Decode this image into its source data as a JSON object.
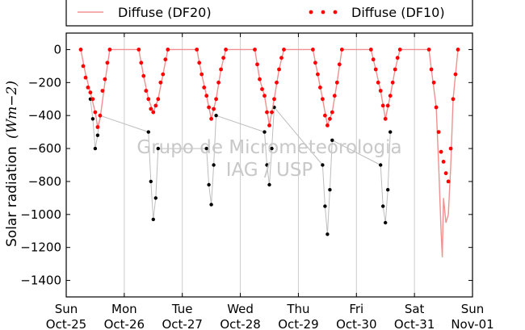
{
  "chart_data": {
    "type": "line",
    "ylabel": "Solar radiation",
    "ylabel_unit": "(Wm−2)",
    "ylim": [
      -1500,
      100
    ],
    "y_ticks": [
      0,
      -200,
      -400,
      -600,
      -800,
      -1000,
      -1200,
      -1400
    ],
    "xlim": [
      "2015-10-25",
      "2015-11-01"
    ],
    "x_ticks": [
      {
        "date": "2015-10-25",
        "day": "Sun",
        "label": "Oct-25"
      },
      {
        "date": "2015-10-26",
        "day": "Mon",
        "label": "Oct-26"
      },
      {
        "date": "2015-10-27",
        "day": "Tue",
        "label": "Oct-27"
      },
      {
        "date": "2015-10-28",
        "day": "Wed",
        "label": "Oct-28"
      },
      {
        "date": "2015-10-29",
        "day": "Thu",
        "label": "Oct-29"
      },
      {
        "date": "2015-10-30",
        "day": "Fri",
        "label": "Oct-30"
      },
      {
        "date": "2015-10-31",
        "day": "Sat",
        "label": "Oct-31"
      },
      {
        "date": "2015-11-01",
        "day": "Sun",
        "label": "Nov-01"
      }
    ],
    "grid": "vertical",
    "legend": {
      "placement": "top",
      "columns": 2
    },
    "watermark": [
      "Grupo de Micrometeorologia",
      "IAG / USP"
    ],
    "series": [
      {
        "name": "Diffuse (DF20)",
        "style": "line",
        "color": "#f09090",
        "points": [
          [
            "2015-10-25 06:00",
            0
          ],
          [
            "2015-10-25 08:00",
            -150
          ],
          [
            "2015-10-25 10:00",
            -260
          ],
          [
            "2015-10-25 12:00",
            -380
          ],
          [
            "2015-10-25 13:00",
            -470
          ],
          [
            "2015-10-25 14:00",
            -420
          ],
          [
            "2015-10-25 16:00",
            -200
          ],
          [
            "2015-10-25 18:00",
            0
          ],
          [
            "2015-10-26 06:00",
            0
          ],
          [
            "2015-10-26 08:00",
            -160
          ],
          [
            "2015-10-26 10:00",
            -300
          ],
          [
            "2015-10-26 12:00",
            -380
          ],
          [
            "2015-10-26 14:00",
            -300
          ],
          [
            "2015-10-26 16:00",
            -150
          ],
          [
            "2015-10-26 18:00",
            0
          ],
          [
            "2015-10-27 06:00",
            0
          ],
          [
            "2015-10-27 08:00",
            -150
          ],
          [
            "2015-10-27 10:00",
            -280
          ],
          [
            "2015-10-27 12:00",
            -420
          ],
          [
            "2015-10-27 14:00",
            -300
          ],
          [
            "2015-10-27 16:00",
            -120
          ],
          [
            "2015-10-27 18:00",
            0
          ],
          [
            "2015-10-28 06:00",
            0
          ],
          [
            "2015-10-28 08:00",
            -180
          ],
          [
            "2015-10-28 10:00",
            -280
          ],
          [
            "2015-10-28 12:00",
            -460
          ],
          [
            "2015-10-28 14:00",
            -300
          ],
          [
            "2015-10-28 16:00",
            -120
          ],
          [
            "2015-10-28 18:00",
            0
          ],
          [
            "2015-10-29 06:00",
            0
          ],
          [
            "2015-10-29 08:00",
            -150
          ],
          [
            "2015-10-29 10:00",
            -300
          ],
          [
            "2015-10-29 12:00",
            -460
          ],
          [
            "2015-10-29 14:00",
            -380
          ],
          [
            "2015-10-29 16:00",
            -200
          ],
          [
            "2015-10-29 18:00",
            0
          ],
          [
            "2015-10-30 06:00",
            0
          ],
          [
            "2015-10-30 08:00",
            -120
          ],
          [
            "2015-10-30 10:00",
            -250
          ],
          [
            "2015-10-30 12:00",
            -420
          ],
          [
            "2015-10-30 14:00",
            -280
          ],
          [
            "2015-10-30 16:00",
            -120
          ],
          [
            "2015-10-30 18:00",
            0
          ],
          [
            "2015-10-31 06:00",
            0
          ],
          [
            "2015-10-31 07:00",
            -120
          ],
          [
            "2015-10-31 09:00",
            -350
          ],
          [
            "2015-10-31 10:00",
            -700
          ],
          [
            "2015-10-31 11:00",
            -1100
          ],
          [
            "2015-10-31 11:30",
            -1260
          ],
          [
            "2015-10-31 12:00",
            -900
          ],
          [
            "2015-10-31 13:00",
            -1050
          ],
          [
            "2015-10-31 14:00",
            -1000
          ],
          [
            "2015-10-31 15:00",
            -700
          ],
          [
            "2015-10-31 16:00",
            -300
          ],
          [
            "2015-10-31 17:00",
            -150
          ],
          [
            "2015-10-31 18:00",
            0
          ]
        ]
      },
      {
        "name": "Diffuse (DF10)",
        "style": "dots",
        "color": "#ff0000",
        "points": [
          [
            "2015-10-25 06:00",
            0
          ],
          [
            "2015-10-25 07:00",
            -100
          ],
          [
            "2015-10-25 08:00",
            -170
          ],
          [
            "2015-10-25 09:00",
            -230
          ],
          [
            "2015-10-25 10:00",
            -260
          ],
          [
            "2015-10-25 11:00",
            -300
          ],
          [
            "2015-10-25 12:00",
            -380
          ],
          [
            "2015-10-25 13:00",
            -470
          ],
          [
            "2015-10-25 14:00",
            -400
          ],
          [
            "2015-10-25 15:00",
            -250
          ],
          [
            "2015-10-25 16:00",
            -180
          ],
          [
            "2015-10-25 17:00",
            -80
          ],
          [
            "2015-10-25 18:00",
            0
          ],
          [
            "2015-10-26 06:00",
            0
          ],
          [
            "2015-10-26 07:00",
            -80
          ],
          [
            "2015-10-26 08:00",
            -160
          ],
          [
            "2015-10-26 09:00",
            -250
          ],
          [
            "2015-10-26 10:00",
            -300
          ],
          [
            "2015-10-26 11:00",
            -360
          ],
          [
            "2015-10-26 12:00",
            -380
          ],
          [
            "2015-10-26 13:00",
            -340
          ],
          [
            "2015-10-26 14:00",
            -300
          ],
          [
            "2015-10-26 15:00",
            -200
          ],
          [
            "2015-10-26 16:00",
            -150
          ],
          [
            "2015-10-26 17:00",
            -60
          ],
          [
            "2015-10-26 18:00",
            0
          ],
          [
            "2015-10-27 06:00",
            0
          ],
          [
            "2015-10-27 07:00",
            -80
          ],
          [
            "2015-10-27 08:00",
            -150
          ],
          [
            "2015-10-27 09:00",
            -230
          ],
          [
            "2015-10-27 10:00",
            -280
          ],
          [
            "2015-10-27 11:00",
            -350
          ],
          [
            "2015-10-27 12:00",
            -420
          ],
          [
            "2015-10-27 13:00",
            -360
          ],
          [
            "2015-10-27 14:00",
            -300
          ],
          [
            "2015-10-27 15:00",
            -200
          ],
          [
            "2015-10-27 16:00",
            -120
          ],
          [
            "2015-10-27 17:00",
            -50
          ],
          [
            "2015-10-27 18:00",
            0
          ],
          [
            "2015-10-28 06:00",
            0
          ],
          [
            "2015-10-28 07:00",
            -90
          ],
          [
            "2015-10-28 08:00",
            -180
          ],
          [
            "2015-10-28 09:00",
            -240
          ],
          [
            "2015-10-28 10:00",
            -280
          ],
          [
            "2015-10-28 11:00",
            -380
          ],
          [
            "2015-10-28 12:00",
            -460
          ],
          [
            "2015-10-28 13:00",
            -380
          ],
          [
            "2015-10-28 14:00",
            -300
          ],
          [
            "2015-10-28 15:00",
            -200
          ],
          [
            "2015-10-28 16:00",
            -120
          ],
          [
            "2015-10-28 17:00",
            -50
          ],
          [
            "2015-10-28 18:00",
            0
          ],
          [
            "2015-10-29 06:00",
            0
          ],
          [
            "2015-10-29 07:00",
            -80
          ],
          [
            "2015-10-29 08:00",
            -150
          ],
          [
            "2015-10-29 09:00",
            -230
          ],
          [
            "2015-10-29 10:00",
            -300
          ],
          [
            "2015-10-29 11:00",
            -400
          ],
          [
            "2015-10-29 12:00",
            -460
          ],
          [
            "2015-10-29 13:00",
            -420
          ],
          [
            "2015-10-29 14:00",
            -380
          ],
          [
            "2015-10-29 15:00",
            -280
          ],
          [
            "2015-10-29 16:00",
            -200
          ],
          [
            "2015-10-29 17:00",
            -90
          ],
          [
            "2015-10-29 18:00",
            0
          ],
          [
            "2015-10-30 06:00",
            0
          ],
          [
            "2015-10-30 07:00",
            -60
          ],
          [
            "2015-10-30 08:00",
            -120
          ],
          [
            "2015-10-30 09:00",
            -200
          ],
          [
            "2015-10-30 10:00",
            -250
          ],
          [
            "2015-10-30 11:00",
            -340
          ],
          [
            "2015-10-30 12:00",
            -420
          ],
          [
            "2015-10-30 13:00",
            -340
          ],
          [
            "2015-10-30 14:00",
            -280
          ],
          [
            "2015-10-30 15:00",
            -200
          ],
          [
            "2015-10-30 16:00",
            -120
          ],
          [
            "2015-10-30 17:00",
            -50
          ],
          [
            "2015-10-30 18:00",
            0
          ],
          [
            "2015-10-31 06:00",
            0
          ],
          [
            "2015-10-31 07:00",
            -120
          ],
          [
            "2015-10-31 08:00",
            -200
          ],
          [
            "2015-10-31 09:00",
            -350
          ],
          [
            "2015-10-31 10:00",
            -500
          ],
          [
            "2015-10-31 11:00",
            -620
          ],
          [
            "2015-10-31 12:00",
            -680
          ],
          [
            "2015-10-31 13:00",
            -750
          ],
          [
            "2015-10-31 14:00",
            -800
          ],
          [
            "2015-10-31 15:00",
            -600
          ],
          [
            "2015-10-31 16:00",
            -300
          ],
          [
            "2015-10-31 17:00",
            -150
          ],
          [
            "2015-10-31 18:00",
            0
          ]
        ]
      },
      {
        "style": "dots",
        "color": "#000000",
        "points": [
          [
            "2015-10-25 10:00",
            -300
          ],
          [
            "2015-10-25 11:00",
            -420
          ],
          [
            "2015-10-25 12:00",
            -600
          ],
          [
            "2015-10-25 13:00",
            -520
          ],
          [
            "2015-10-25 14:00",
            -400
          ],
          [
            "2015-10-26 10:00",
            -500
          ],
          [
            "2015-10-26 11:00",
            -800
          ],
          [
            "2015-10-26 12:00",
            -1030
          ],
          [
            "2015-10-26 13:00",
            -900
          ],
          [
            "2015-10-26 14:00",
            -600
          ],
          [
            "2015-10-27 10:00",
            -600
          ],
          [
            "2015-10-27 11:00",
            -820
          ],
          [
            "2015-10-27 12:00",
            -940
          ],
          [
            "2015-10-27 13:00",
            -700
          ],
          [
            "2015-10-27 14:00",
            -400
          ],
          [
            "2015-10-28 10:00",
            -500
          ],
          [
            "2015-10-28 11:00",
            -700
          ],
          [
            "2015-10-28 12:00",
            -820
          ],
          [
            "2015-10-28 13:00",
            -600
          ],
          [
            "2015-10-28 14:00",
            -350
          ],
          [
            "2015-10-29 10:00",
            -700
          ],
          [
            "2015-10-29 11:00",
            -950
          ],
          [
            "2015-10-29 12:00",
            -1120
          ],
          [
            "2015-10-29 13:00",
            -850
          ],
          [
            "2015-10-29 14:00",
            -550
          ],
          [
            "2015-10-30 10:00",
            -700
          ],
          [
            "2015-10-30 11:00",
            -950
          ],
          [
            "2015-10-30 12:00",
            -1050
          ],
          [
            "2015-10-30 13:00",
            -850
          ],
          [
            "2015-10-30 14:00",
            -500
          ]
        ]
      }
    ]
  }
}
